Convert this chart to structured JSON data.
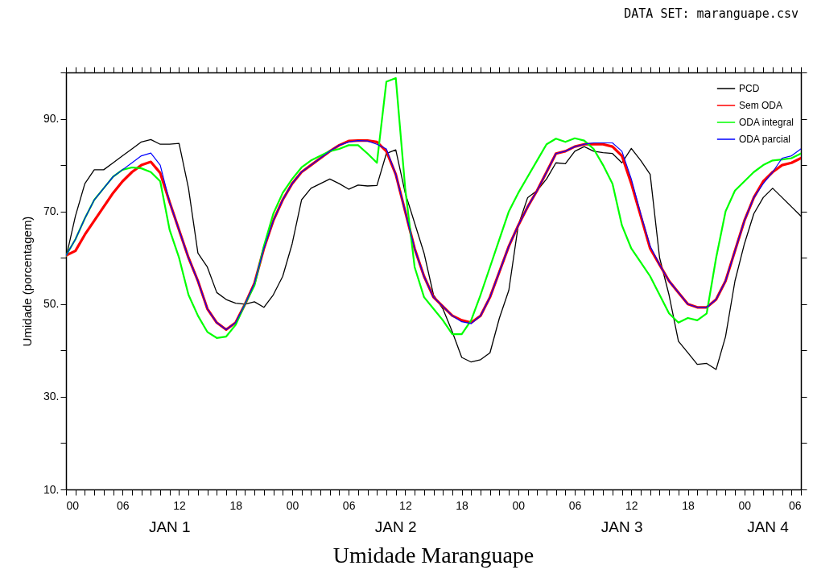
{
  "chart_data": {
    "type": "line",
    "title": "Umidade Maranguape",
    "ylabel": "Umidade (porcentagem)",
    "annotations": [
      "DATA SET: maranguape.csv",
      "JAN 1",
      "JAN 2",
      "JAN 3",
      "JAN 4"
    ],
    "x": [
      0,
      1,
      2,
      3,
      4,
      5,
      6,
      7,
      8,
      9,
      10,
      11,
      12,
      13,
      14,
      15,
      16,
      17,
      18,
      19,
      20,
      21,
      22,
      23,
      24,
      25,
      26,
      27,
      28,
      29,
      30,
      31,
      32,
      33,
      34,
      35,
      36,
      37,
      38,
      39,
      40,
      41,
      42,
      43,
      44,
      45,
      46,
      47,
      48,
      49,
      50,
      51,
      52,
      53,
      54,
      55,
      56,
      57,
      58,
      59,
      60,
      61,
      62,
      63,
      64,
      65,
      66,
      67,
      68,
      69,
      70,
      71,
      72,
      73,
      74,
      75,
      76,
      77,
      78
    ],
    "series": [
      {
        "name": "PCD",
        "color": "#000000",
        "values": [
          60,
          69,
          76,
          79,
          79,
          80.5,
          82,
          83.5,
          85,
          85.5,
          84.5,
          84.5,
          84.7,
          75,
          61,
          58,
          52.5,
          51,
          50.2,
          50,
          50.5,
          49.3,
          52,
          56,
          63,
          72.5,
          75,
          76,
          77,
          76,
          74.8,
          75.7,
          75.5,
          75.6,
          82.5,
          83.3,
          74,
          67.5,
          61,
          52,
          49,
          44,
          38.5,
          37.5,
          38,
          39.5,
          47,
          53,
          67,
          73,
          74.5,
          77,
          80.5,
          80.3,
          83,
          84,
          83,
          82.7,
          82.5,
          80.5,
          83.6,
          81,
          78,
          60,
          52,
          42,
          39.5,
          37,
          37.2,
          35.9,
          43,
          55,
          63,
          69.5,
          73,
          75,
          73,
          71,
          69
        ]
      },
      {
        "name": "Sem ODA",
        "color": "#ff0000",
        "values": [
          60.5,
          61.5,
          65,
          68,
          71,
          74,
          76.5,
          78.5,
          80,
          80.7,
          78.3,
          72,
          66,
          60,
          55,
          49,
          46,
          44.5,
          46,
          50,
          54.5,
          62,
          68,
          72.5,
          76,
          78.5,
          80,
          81.5,
          83,
          84.3,
          85.2,
          85.3,
          85.3,
          85,
          83,
          78,
          70,
          62,
          56,
          51.5,
          49.5,
          47.5,
          46.5,
          46,
          47.5,
          51.5,
          57,
          62.5,
          67,
          71,
          74.5,
          78.5,
          82.5,
          83,
          84,
          84.5,
          84.5,
          84.5,
          84,
          82,
          76,
          69,
          62,
          58.5,
          55,
          52.5,
          50,
          49.3,
          49.3,
          51,
          55,
          61.5,
          68,
          73,
          76.5,
          78.5,
          80,
          80.5,
          81.5
        ]
      },
      {
        "name": "ODA integral",
        "color": "#00ff00",
        "values": [
          60.5,
          64,
          68.5,
          72.5,
          75,
          77.5,
          79,
          79.5,
          79.3,
          78.5,
          76.5,
          66,
          60,
          52,
          47.5,
          44,
          42.7,
          43,
          45.5,
          50,
          54,
          62.5,
          69.5,
          74,
          77,
          79.5,
          81,
          82,
          83,
          83.5,
          84.3,
          84.3,
          82.5,
          80.5,
          98,
          98.8,
          75,
          58,
          51.5,
          49,
          46.5,
          43.5,
          43.5,
          46.5,
          52,
          58,
          64,
          70,
          74,
          77.5,
          81,
          84.5,
          85.7,
          85,
          85.8,
          85.3,
          83.5,
          80,
          76,
          67,
          62,
          59,
          56,
          52,
          48,
          46,
          47,
          46.5,
          48,
          60,
          70,
          74.5,
          76.5,
          78.5,
          80,
          81,
          81.2,
          81.5,
          82.5
        ]
      },
      {
        "name": "ODA parcial",
        "color": "#0000ff",
        "values": [
          60.5,
          64,
          68.5,
          72.5,
          75,
          77.5,
          79,
          80.5,
          82,
          82.6,
          80,
          72,
          66,
          60,
          55,
          49,
          46,
          44.5,
          46,
          50,
          54.5,
          62,
          68,
          72.5,
          76,
          78.5,
          80,
          81.5,
          83,
          84.3,
          85,
          85.3,
          85.2,
          84.5,
          83.5,
          78,
          70,
          62,
          56,
          51.5,
          49.5,
          47.5,
          46.2,
          45.8,
          47.5,
          51.5,
          57,
          62.5,
          67,
          71,
          74.5,
          78.5,
          82.5,
          83,
          84,
          84.5,
          84.8,
          84.8,
          84.8,
          83,
          77,
          69.5,
          62.5,
          58.5,
          55,
          52.5,
          50,
          49.3,
          49.3,
          51,
          55,
          61.5,
          68,
          73,
          76,
          78.5,
          81.5,
          82,
          83.5
        ]
      }
    ],
    "xlim": [
      0,
      78
    ],
    "xticks": [
      {
        "value": 0,
        "label": "00"
      },
      {
        "value": 1,
        "label": null
      },
      {
        "value": 2,
        "label": null
      },
      {
        "value": 3,
        "label": null
      },
      {
        "value": 4,
        "label": null
      },
      {
        "value": 5,
        "label": null
      },
      {
        "value": 6,
        "label": "06"
      },
      {
        "value": 7,
        "label": null
      },
      {
        "value": 8,
        "label": null
      },
      {
        "value": 9,
        "label": null
      },
      {
        "value": 10,
        "label": null
      },
      {
        "value": 11,
        "label": null
      },
      {
        "value": 12,
        "label": "12"
      },
      {
        "value": 13,
        "label": null
      },
      {
        "value": 14,
        "label": null
      },
      {
        "value": 15,
        "label": null
      },
      {
        "value": 16,
        "label": null
      },
      {
        "value": 17,
        "label": null
      },
      {
        "value": 18,
        "label": "18"
      },
      {
        "value": 19,
        "label": null
      },
      {
        "value": 20,
        "label": null
      },
      {
        "value": 21,
        "label": null
      },
      {
        "value": 22,
        "label": null
      },
      {
        "value": 23,
        "label": null
      },
      {
        "value": 24,
        "label": "00"
      },
      {
        "value": 25,
        "label": null
      },
      {
        "value": 26,
        "label": null
      },
      {
        "value": 27,
        "label": null
      },
      {
        "value": 28,
        "label": null
      },
      {
        "value": 29,
        "label": null
      },
      {
        "value": 30,
        "label": "06"
      },
      {
        "value": 31,
        "label": null
      },
      {
        "value": 32,
        "label": null
      },
      {
        "value": 33,
        "label": null
      },
      {
        "value": 34,
        "label": null
      },
      {
        "value": 35,
        "label": null
      },
      {
        "value": 36,
        "label": "12"
      },
      {
        "value": 37,
        "label": null
      },
      {
        "value": 38,
        "label": null
      },
      {
        "value": 39,
        "label": null
      },
      {
        "value": 40,
        "label": null
      },
      {
        "value": 41,
        "label": null
      },
      {
        "value": 42,
        "label": "18"
      },
      {
        "value": 43,
        "label": null
      },
      {
        "value": 44,
        "label": null
      },
      {
        "value": 45,
        "label": null
      },
      {
        "value": 46,
        "label": null
      },
      {
        "value": 47,
        "label": null
      },
      {
        "value": 48,
        "label": "00"
      },
      {
        "value": 49,
        "label": null
      },
      {
        "value": 50,
        "label": null
      },
      {
        "value": 51,
        "label": null
      },
      {
        "value": 52,
        "label": null
      },
      {
        "value": 53,
        "label": null
      },
      {
        "value": 54,
        "label": "06"
      },
      {
        "value": 55,
        "label": null
      },
      {
        "value": 56,
        "label": null
      },
      {
        "value": 57,
        "label": null
      },
      {
        "value": 58,
        "label": null
      },
      {
        "value": 59,
        "label": null
      },
      {
        "value": 60,
        "label": "12"
      },
      {
        "value": 61,
        "label": null
      },
      {
        "value": 62,
        "label": null
      },
      {
        "value": 63,
        "label": null
      },
      {
        "value": 64,
        "label": null
      },
      {
        "value": 65,
        "label": null
      },
      {
        "value": 66,
        "label": "18"
      },
      {
        "value": 67,
        "label": null
      },
      {
        "value": 68,
        "label": null
      },
      {
        "value": 69,
        "label": null
      },
      {
        "value": 70,
        "label": null
      },
      {
        "value": 71,
        "label": null
      },
      {
        "value": 72,
        "label": "00"
      },
      {
        "value": 73,
        "label": null
      },
      {
        "value": 74,
        "label": null
      },
      {
        "value": 75,
        "label": null
      },
      {
        "value": 76,
        "label": null
      },
      {
        "value": 77,
        "label": null
      },
      {
        "value": 78,
        "label": "06"
      }
    ],
    "ylim": [
      10,
      100
    ],
    "yticks": [
      {
        "value": 10,
        "label": "10."
      },
      {
        "value": 20,
        "label": null
      },
      {
        "value": 30,
        "label": "30."
      },
      {
        "value": 40,
        "label": null
      },
      {
        "value": 50,
        "label": "50."
      },
      {
        "value": 60,
        "label": null
      },
      {
        "value": 70,
        "label": "70."
      },
      {
        "value": 80,
        "label": null
      },
      {
        "value": 90,
        "label": "90."
      },
      {
        "value": 100,
        "label": null
      }
    ],
    "legend": "top right",
    "line_style": "solid",
    "grid": false
  }
}
